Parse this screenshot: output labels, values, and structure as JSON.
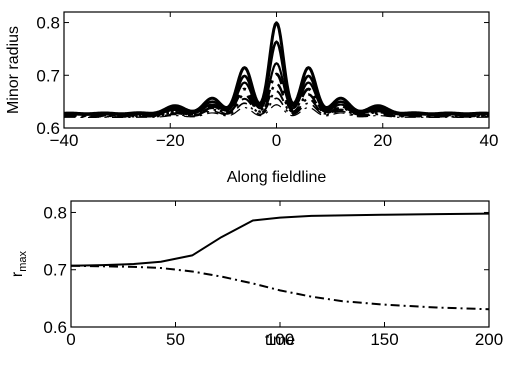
{
  "chart_data": [
    {
      "type": "line",
      "xlabel": "Along fieldline",
      "ylabel": "Minor radius",
      "xlim": [
        -40,
        40
      ],
      "ylim": [
        0.6,
        0.82
      ],
      "xticks": [
        "−40",
        "−20",
        "0",
        "20",
        "40"
      ],
      "xtick_values": [
        -40,
        -20,
        0,
        20,
        40
      ],
      "yticks": [
        "0.6",
        "0.7",
        "0.8"
      ],
      "ytick_values": [
        0.6,
        0.7,
        0.8
      ],
      "grid": false,
      "legend": "none",
      "color": "#000000",
      "series": [
        {
          "style": "solid",
          "width": 3.0,
          "base": 0.627,
          "peak": 0.795,
          "side1": 0.711,
          "side2": 0.654,
          "side3": 0.64
        },
        {
          "style": "solid",
          "width": 2.6,
          "base": 0.626,
          "peak": 0.76,
          "side1": 0.696,
          "side2": 0.648,
          "side3": 0.636
        },
        {
          "style": "solid",
          "width": 2.2,
          "base": 0.625,
          "peak": 0.72,
          "side1": 0.684,
          "side2": 0.643,
          "side3": 0.633
        },
        {
          "style": "dashdot",
          "width": 2.8,
          "base": 0.624,
          "peak": 0.7,
          "side1": 0.672,
          "side2": 0.64,
          "side3": 0.631
        },
        {
          "style": "dashdot",
          "width": 2.4,
          "base": 0.623,
          "peak": 0.682,
          "side1": 0.662,
          "side2": 0.637,
          "side3": 0.629
        },
        {
          "style": "dashdot",
          "width": 2.0,
          "base": 0.622,
          "peak": 0.668,
          "side1": 0.654,
          "side2": 0.634,
          "side3": 0.627
        },
        {
          "style": "dashdot",
          "width": 1.6,
          "base": 0.621,
          "peak": 0.655,
          "side1": 0.646,
          "side2": 0.631,
          "side3": 0.625
        },
        {
          "style": "dashdot",
          "width": 1.2,
          "base": 0.62,
          "peak": 0.643,
          "side1": 0.638,
          "side2": 0.628,
          "side3": 0.623
        }
      ]
    },
    {
      "type": "line",
      "xlabel": "time",
      "ylabel_main": "r",
      "ylabel_sub": "max",
      "xlim": [
        0,
        200
      ],
      "ylim": [
        0.6,
        0.82
      ],
      "xticks": [
        "0",
        "50",
        "100",
        "150",
        "200"
      ],
      "xtick_values": [
        0,
        50,
        100,
        150,
        200
      ],
      "yticks": [
        "0.6",
        "0.7",
        "0.8"
      ],
      "ytick_values": [
        0.6,
        0.7,
        0.8
      ],
      "grid": false,
      "legend": "none",
      "color": "#000000",
      "series": [
        {
          "style": "solid",
          "x": [
            0,
            15,
            30,
            43,
            58,
            72,
            87,
            100,
            115,
            130,
            150,
            175,
            200
          ],
          "y": [
            0.707,
            0.708,
            0.71,
            0.714,
            0.725,
            0.757,
            0.786,
            0.791,
            0.794,
            0.795,
            0.796,
            0.797,
            0.798
          ]
        },
        {
          "style": "dashdot",
          "x": [
            0,
            15,
            30,
            43,
            58,
            72,
            87,
            100,
            115,
            130,
            150,
            175,
            200
          ],
          "y": [
            0.707,
            0.706,
            0.705,
            0.703,
            0.697,
            0.688,
            0.676,
            0.664,
            0.653,
            0.645,
            0.639,
            0.634,
            0.631
          ]
        }
      ]
    }
  ]
}
